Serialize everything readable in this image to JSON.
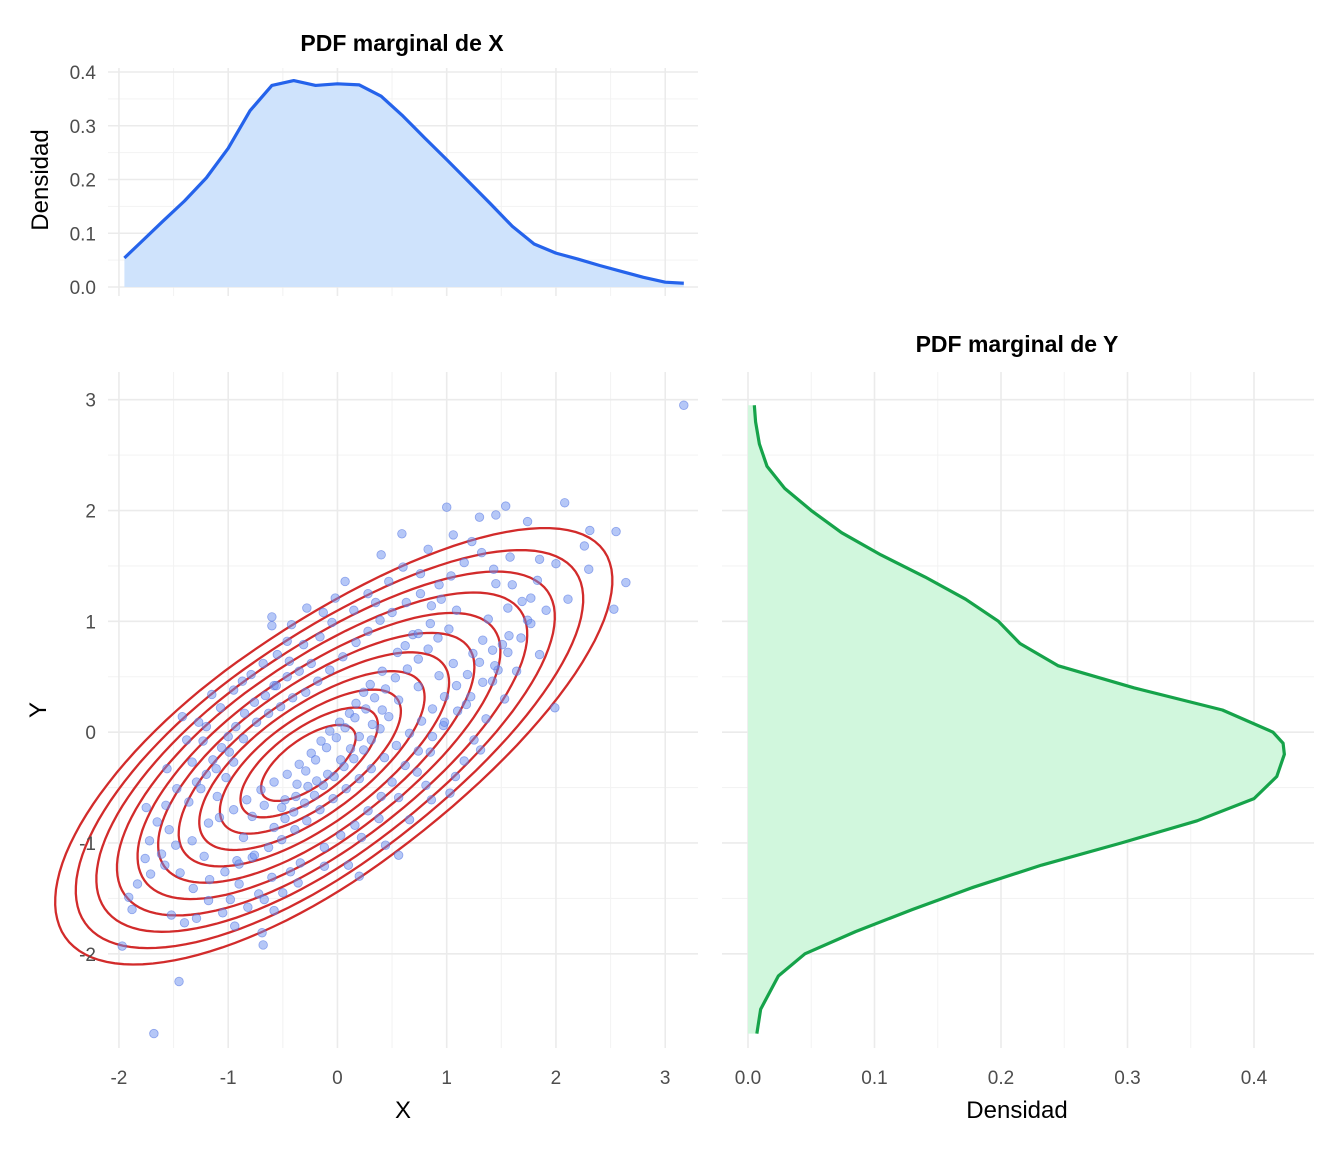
{
  "chart_data": [
    {
      "type": "area",
      "title": "PDF marginal de X",
      "xlabel": "",
      "ylabel": "Densidad",
      "xlim": [
        -2.1,
        3.3
      ],
      "ylim": [
        0,
        0.4
      ],
      "x_ticks": [
        -2,
        -1,
        0,
        1,
        2,
        3
      ],
      "y_ticks": [
        "0.0",
        "0.1",
        "0.2",
        "0.3",
        "0.4"
      ],
      "grid": true,
      "colors": {
        "line": "#2563eb",
        "fill": "#cfe3fc"
      },
      "x": [
        -1.95,
        -1.8,
        -1.6,
        -1.4,
        -1.2,
        -1.0,
        -0.8,
        -0.6,
        -0.4,
        -0.2,
        0.0,
        0.2,
        0.4,
        0.6,
        0.8,
        1.0,
        1.2,
        1.4,
        1.6,
        1.8,
        2.0,
        2.2,
        2.4,
        2.6,
        2.8,
        3.0,
        3.17
      ],
      "y": [
        0.054,
        0.083,
        0.122,
        0.16,
        0.203,
        0.258,
        0.328,
        0.375,
        0.384,
        0.375,
        0.378,
        0.376,
        0.355,
        0.318,
        0.277,
        0.237,
        0.196,
        0.155,
        0.113,
        0.08,
        0.063,
        0.052,
        0.04,
        0.029,
        0.018,
        0.009,
        0.007
      ]
    },
    {
      "type": "scatter",
      "title": "",
      "xlabel": "X",
      "ylabel": "Y",
      "xlim": [
        -2.1,
        3.3
      ],
      "ylim": [
        -2.85,
        3.25
      ],
      "x_ticks": [
        -2,
        -1,
        0,
        1,
        2,
        3
      ],
      "y_ticks": [
        -2,
        -1,
        0,
        1,
        2,
        3
      ],
      "grid": true,
      "colors": {
        "points": "#6c8fef",
        "contours": "#d22b2b"
      },
      "contour_levels": 11,
      "points": [
        [
          3.17,
          2.95
        ],
        [
          -1.97,
          -1.93
        ],
        [
          -1.68,
          -2.72
        ],
        [
          -1.45,
          -2.25
        ],
        [
          1.99,
          0.22
        ],
        [
          2.53,
          1.11
        ],
        [
          2.64,
          1.35
        ],
        [
          2.55,
          1.81
        ],
        [
          2.31,
          1.82
        ],
        [
          2.08,
          2.07
        ],
        [
          1.54,
          2.04
        ],
        [
          1.0,
          2.03
        ],
        [
          0.59,
          1.79
        ],
        [
          1.23,
          1.72
        ],
        [
          2.26,
          1.68
        ],
        [
          2.3,
          1.47
        ],
        [
          2.0,
          1.52
        ],
        [
          1.83,
          1.37
        ],
        [
          1.45,
          1.34
        ],
        [
          1.58,
          1.58
        ],
        [
          1.74,
          1.9
        ],
        [
          1.45,
          1.96
        ],
        [
          0.76,
          1.43
        ],
        [
          0.4,
          1.6
        ],
        [
          0.28,
          1.25
        ],
        [
          0.07,
          1.36
        ],
        [
          -0.6,
          1.04
        ],
        [
          -0.6,
          0.96
        ],
        [
          -0.46,
          0.82
        ],
        [
          -0.44,
          0.64
        ],
        [
          -0.58,
          0.42
        ],
        [
          -0.87,
          0.46
        ],
        [
          -1.15,
          0.34
        ],
        [
          -1.42,
          0.14
        ],
        [
          -1.23,
          -0.08
        ],
        [
          -0.95,
          -0.27
        ],
        [
          -1.02,
          -0.41
        ],
        [
          -1.1,
          -0.58
        ],
        [
          -1.36,
          -0.63
        ],
        [
          -1.57,
          -0.66
        ],
        [
          -1.75,
          -0.68
        ],
        [
          -1.72,
          -0.98
        ],
        [
          -1.48,
          -1.02
        ],
        [
          -1.33,
          -0.98
        ],
        [
          -1.22,
          -1.12
        ],
        [
          -1.44,
          -1.27
        ],
        [
          -1.58,
          -1.2
        ],
        [
          -1.71,
          -1.28
        ],
        [
          -1.83,
          -1.37
        ],
        [
          -1.91,
          -1.49
        ],
        [
          -1.52,
          -1.65
        ],
        [
          -1.4,
          -1.72
        ],
        [
          -1.29,
          -1.68
        ],
        [
          -0.98,
          -1.51
        ],
        [
          -0.72,
          -1.46
        ],
        [
          -0.67,
          -1.51
        ],
        [
          -0.5,
          -1.45
        ],
        [
          -0.43,
          -1.26
        ],
        [
          -0.68,
          -1.92
        ],
        [
          -0.69,
          -1.81
        ],
        [
          -0.78,
          -1.13
        ],
        [
          -0.92,
          -1.16
        ],
        [
          -0.86,
          -0.95
        ],
        [
          -0.78,
          -0.76
        ],
        [
          -0.67,
          -0.66
        ],
        [
          -0.51,
          -0.68
        ],
        [
          -0.38,
          -0.58
        ],
        [
          -0.27,
          -0.49
        ],
        [
          -0.19,
          -0.44
        ],
        [
          -0.09,
          -0.38
        ],
        [
          0.03,
          -0.25
        ],
        [
          0.12,
          -0.15
        ],
        [
          0.2,
          -0.04
        ],
        [
          0.32,
          0.07
        ],
        [
          0.41,
          0.2
        ],
        [
          0.56,
          0.29
        ],
        [
          0.74,
          0.41
        ],
        [
          0.93,
          0.51
        ],
        [
          1.06,
          0.62
        ],
        [
          1.24,
          0.71
        ],
        [
          1.33,
          0.83
        ],
        [
          1.47,
          0.56
        ],
        [
          1.18,
          0.25
        ],
        [
          0.97,
          0.06
        ],
        [
          0.85,
          -0.18
        ],
        [
          0.73,
          -0.36
        ],
        [
          0.56,
          -0.59
        ],
        [
          0.38,
          -0.78
        ],
        [
          0.22,
          -0.95
        ],
        [
          0.1,
          -1.2
        ],
        [
          0.56,
          -1.11
        ],
        [
          0.86,
          -0.61
        ],
        [
          1.16,
          -0.26
        ],
        [
          1.25,
          -0.07
        ],
        [
          1.42,
          0.46
        ],
        [
          1.51,
          0.79
        ],
        [
          1.56,
          1.12
        ],
        [
          1.77,
          1.21
        ],
        [
          1.38,
          1.02
        ],
        [
          1.09,
          1.1
        ],
        [
          0.95,
          1.2
        ],
        [
          0.86,
          1.14
        ],
        [
          0.69,
          0.88
        ],
        [
          0.55,
          0.72
        ],
        [
          0.41,
          0.55
        ],
        [
          0.3,
          0.43
        ],
        [
          0.24,
          0.36
        ],
        [
          0.17,
          0.26
        ],
        [
          0.11,
          0.17
        ],
        [
          0.02,
          0.09
        ],
        [
          -0.07,
          0.01
        ],
        [
          -0.15,
          -0.08
        ],
        [
          -0.24,
          -0.19
        ],
        [
          -0.35,
          -0.29
        ],
        [
          -0.46,
          -0.38
        ],
        [
          -0.58,
          -0.45
        ],
        [
          -0.7,
          -0.52
        ],
        [
          -0.83,
          -0.61
        ],
        [
          -0.95,
          -0.7
        ],
        [
          -1.08,
          -0.77
        ],
        [
          -1.18,
          -0.82
        ],
        [
          -1.25,
          -0.51
        ],
        [
          -1.11,
          -0.33
        ],
        [
          -0.99,
          -0.18
        ],
        [
          -0.86,
          -0.06
        ],
        [
          -0.74,
          0.09
        ],
        [
          -0.63,
          0.17
        ],
        [
          -0.52,
          0.23
        ],
        [
          -0.41,
          0.31
        ],
        [
          -0.29,
          0.36
        ],
        [
          -0.18,
          0.46
        ],
        [
          -0.07,
          0.56
        ],
        [
          0.05,
          0.68
        ],
        [
          0.17,
          0.81
        ],
        [
          0.28,
          0.91
        ],
        [
          0.39,
          1.01
        ],
        [
          0.5,
          1.08
        ],
        [
          0.63,
          1.17
        ],
        [
          0.76,
          1.25
        ],
        [
          0.93,
          1.33
        ],
        [
          1.04,
          1.41
        ],
        [
          1.16,
          1.53
        ],
        [
          1.32,
          1.62
        ],
        [
          1.43,
          1.47
        ],
        [
          1.6,
          1.33
        ],
        [
          1.69,
          1.18
        ],
        [
          1.74,
          1.01
        ],
        [
          1.57,
          0.87
        ],
        [
          1.42,
          0.74
        ],
        [
          1.3,
          0.63
        ],
        [
          1.19,
          0.52
        ],
        [
          1.09,
          0.42
        ],
        [
          0.98,
          0.32
        ],
        [
          0.87,
          0.21
        ],
        [
          0.77,
          0.1
        ],
        [
          0.66,
          -0.01
        ],
        [
          0.54,
          -0.12
        ],
        [
          0.43,
          -0.23
        ],
        [
          0.31,
          -0.33
        ],
        [
          0.2,
          -0.42
        ],
        [
          0.08,
          -0.51
        ],
        [
          -0.04,
          -0.6
        ],
        [
          -0.16,
          -0.7
        ],
        [
          -0.28,
          -0.8
        ],
        [
          -0.39,
          -0.88
        ],
        [
          -0.51,
          -0.97
        ],
        [
          -0.63,
          -1.04
        ],
        [
          -0.76,
          -1.11
        ],
        [
          -0.9,
          -1.19
        ],
        [
          -1.03,
          -1.26
        ],
        [
          -1.17,
          -1.33
        ],
        [
          -0.9,
          -1.37
        ],
        [
          -0.6,
          -1.31
        ],
        [
          -0.34,
          -1.18
        ],
        [
          -0.12,
          -1.04
        ],
        [
          0.03,
          -0.93
        ],
        [
          0.16,
          -0.84
        ],
        [
          0.28,
          -0.71
        ],
        [
          0.4,
          -0.58
        ],
        [
          0.5,
          -0.45
        ],
        [
          0.62,
          -0.3
        ],
        [
          0.74,
          -0.17
        ],
        [
          0.87,
          -0.04
        ],
        [
          0.98,
          0.09
        ],
        [
          1.1,
          0.19
        ],
        [
          1.22,
          0.32
        ],
        [
          1.33,
          0.45
        ],
        [
          1.44,
          0.6
        ],
        [
          1.56,
          0.72
        ],
        [
          1.68,
          0.85
        ],
        [
          1.77,
          0.98
        ],
        [
          1.91,
          1.1
        ],
        [
          1.85,
          1.56
        ],
        [
          2.11,
          1.2
        ],
        [
          -0.24,
          0.62
        ],
        [
          -0.35,
          0.55
        ],
        [
          -0.46,
          0.5
        ],
        [
          -0.56,
          0.42
        ],
        [
          -0.66,
          0.33
        ],
        [
          -0.76,
          0.27
        ],
        [
          -0.85,
          0.17
        ],
        [
          -0.93,
          0.05
        ],
        [
          -1.0,
          -0.04
        ],
        [
          -1.06,
          -0.14
        ],
        [
          -1.14,
          -0.25
        ],
        [
          -1.2,
          -0.38
        ],
        [
          -1.29,
          -0.45
        ],
        [
          -1.33,
          -0.27
        ],
        [
          -1.38,
          -0.07
        ],
        [
          -1.27,
          0.09
        ],
        [
          0.47,
          0.14
        ],
        [
          0.39,
          0.03
        ],
        [
          0.31,
          -0.07
        ],
        [
          0.24,
          -0.16
        ],
        [
          0.15,
          -0.24
        ],
        [
          0.06,
          -0.31
        ],
        [
          -0.03,
          -0.4
        ],
        [
          -0.13,
          -0.48
        ],
        [
          -0.21,
          -0.57
        ],
        [
          -0.3,
          -0.64
        ],
        [
          -0.4,
          -0.72
        ],
        [
          -0.48,
          -0.78
        ],
        [
          -0.58,
          -0.86
        ],
        [
          -0.48,
          -0.61
        ],
        [
          -0.37,
          -0.47
        ],
        [
          -0.29,
          -0.35
        ],
        [
          -0.2,
          -0.25
        ],
        [
          -0.1,
          -0.14
        ],
        [
          -0.01,
          -0.05
        ],
        [
          0.07,
          0.04
        ],
        [
          0.16,
          0.13
        ],
        [
          0.26,
          0.21
        ],
        [
          0.34,
          0.31
        ],
        [
          0.44,
          0.39
        ],
        [
          0.53,
          0.49
        ],
        [
          0.64,
          0.57
        ],
        [
          0.74,
          0.66
        ],
        [
          0.83,
          0.75
        ],
        [
          0.92,
          0.85
        ],
        [
          1.02,
          0.93
        ],
        [
          0.85,
          0.98
        ],
        [
          0.74,
          0.89
        ],
        [
          0.62,
          0.78
        ],
        [
          -1.61,
          -1.1
        ],
        [
          -1.54,
          -0.88
        ],
        [
          -1.65,
          -0.81
        ],
        [
          -1.47,
          -0.51
        ],
        [
          -1.56,
          -0.33
        ],
        [
          -1.88,
          -1.6
        ],
        [
          -1.76,
          -1.14
        ],
        [
          -1.32,
          -1.41
        ],
        [
          -1.18,
          -1.52
        ],
        [
          -1.05,
          -1.63
        ],
        [
          -0.94,
          -1.75
        ],
        [
          -0.82,
          -1.58
        ],
        [
          -0.58,
          -1.61
        ],
        [
          -0.36,
          -1.36
        ],
        [
          -0.12,
          -1.21
        ],
        [
          0.2,
          -1.3
        ],
        [
          0.44,
          -1.02
        ],
        [
          0.66,
          -0.79
        ],
        [
          0.81,
          -0.48
        ],
        [
          1.08,
          -0.4
        ],
        [
          1.31,
          -0.16
        ],
        [
          1.03,
          -0.55
        ],
        [
          1.36,
          0.12
        ],
        [
          1.53,
          0.3
        ],
        [
          1.64,
          0.55
        ],
        [
          1.85,
          0.7
        ],
        [
          -0.05,
          0.99
        ],
        [
          -0.16,
          0.86
        ],
        [
          -0.31,
          0.79
        ],
        [
          -0.42,
          0.97
        ],
        [
          -0.55,
          0.7
        ],
        [
          -0.68,
          0.62
        ],
        [
          -0.79,
          0.52
        ],
        [
          -0.95,
          0.38
        ],
        [
          -1.07,
          0.22
        ],
        [
          -1.2,
          0.05
        ],
        [
          1.3,
          1.94
        ],
        [
          1.06,
          1.78
        ],
        [
          0.83,
          1.65
        ],
        [
          0.6,
          1.49
        ],
        [
          0.47,
          1.36
        ],
        [
          0.35,
          1.17
        ],
        [
          0.15,
          1.1
        ],
        [
          -0.02,
          1.21
        ],
        [
          -0.13,
          1.08
        ],
        [
          -0.28,
          1.12
        ]
      ]
    },
    {
      "type": "area",
      "title": "PDF marginal de Y",
      "xlabel": "Densidad",
      "ylabel": "",
      "xlim": [
        -0.02,
        0.445
      ],
      "ylim": [
        -2.85,
        3.25
      ],
      "x_ticks": [
        "0.0",
        "0.1",
        "0.2",
        "0.3",
        "0.4"
      ],
      "y_ticks": [
        -2,
        -1,
        0,
        1,
        2,
        3
      ],
      "grid": true,
      "orientation": "horizontal",
      "colors": {
        "line": "#16a34a",
        "fill": "#d1f7dd"
      },
      "y": [
        -2.72,
        -2.5,
        -2.2,
        -2.0,
        -1.8,
        -1.6,
        -1.4,
        -1.2,
        -1.0,
        -0.8,
        -0.6,
        -0.4,
        -0.2,
        -0.1,
        0.0,
        0.2,
        0.4,
        0.6,
        0.8,
        1.0,
        1.2,
        1.4,
        1.6,
        1.8,
        2.0,
        2.2,
        2.4,
        2.6,
        2.8,
        2.95
      ],
      "x": [
        0.007,
        0.01,
        0.024,
        0.045,
        0.085,
        0.13,
        0.178,
        0.232,
        0.295,
        0.355,
        0.4,
        0.418,
        0.424,
        0.423,
        0.415,
        0.375,
        0.305,
        0.245,
        0.215,
        0.198,
        0.172,
        0.14,
        0.105,
        0.074,
        0.05,
        0.029,
        0.015,
        0.009,
        0.006,
        0.005
      ]
    }
  ]
}
